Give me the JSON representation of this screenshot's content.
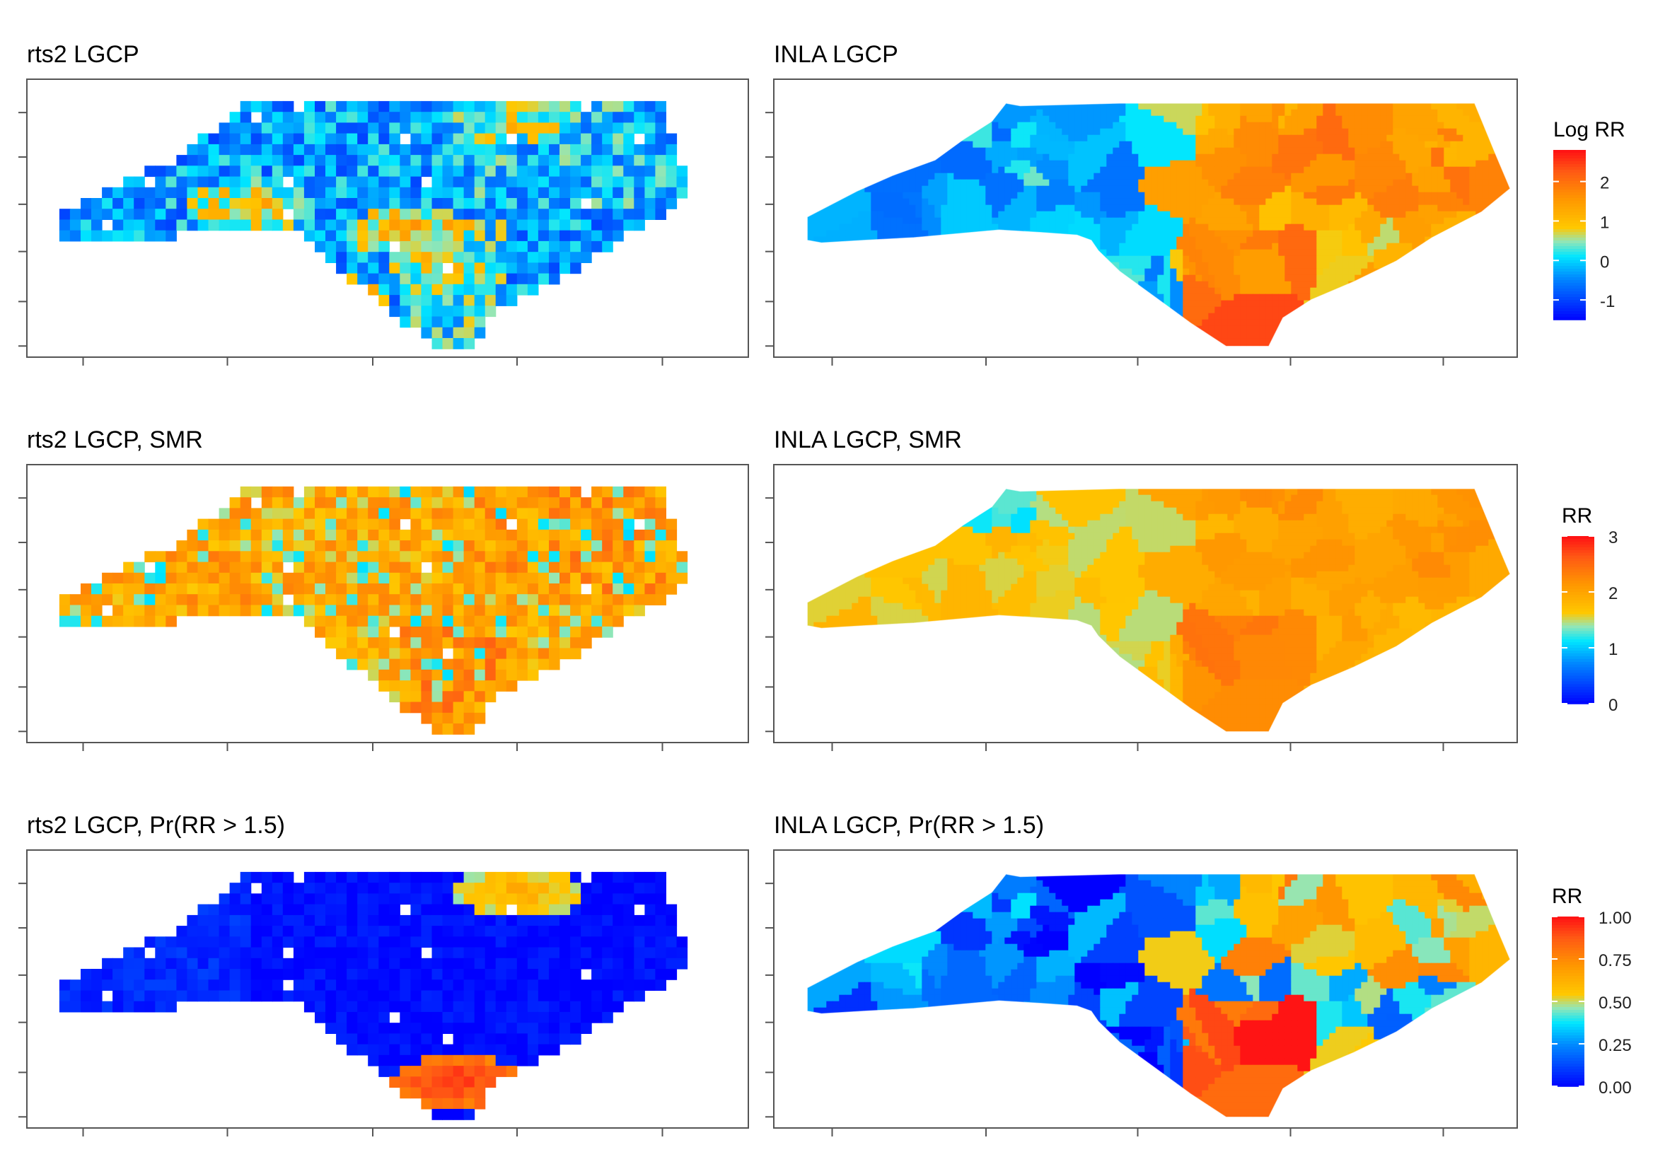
{
  "chart_data": [
    {
      "type": "heatmap",
      "title": "rts2 LGCP",
      "kind": "grid",
      "scale": "logrr",
      "style": "mixed_low",
      "hot": [
        [
          0.72,
          0.12,
          0.4
        ],
        [
          0.3,
          0.45,
          0.45
        ],
        [
          0.55,
          0.55,
          0.5
        ],
        [
          0.62,
          0.68,
          0.4
        ],
        [
          0.42,
          0.82,
          0.5
        ]
      ]
    },
    {
      "type": "heatmap",
      "title": "INLA LGCP",
      "kind": "county",
      "scale": "logrr",
      "style": "inla_logrr"
    },
    {
      "type": "heatmap",
      "title": "rts2 LGCP, SMR",
      "kind": "grid",
      "scale": "rr",
      "style": "mixed_high"
    },
    {
      "type": "heatmap",
      "title": "INLA LGCP, SMR",
      "kind": "county",
      "scale": "rr",
      "style": "inla_rr"
    },
    {
      "type": "heatmap",
      "title": "rts2 LGCP, Pr(RR > 1.5)",
      "kind": "grid",
      "scale": "prob",
      "style": "prob_grid",
      "hot": [
        [
          0.62,
          0.85,
          0.8
        ],
        [
          0.72,
          0.12,
          0.5
        ]
      ]
    },
    {
      "type": "heatmap",
      "title": "INLA LGCP, Pr(RR > 1.5)",
      "kind": "county",
      "scale": "prob",
      "style": "inla_prob"
    }
  ],
  "legends": {
    "logrr": {
      "title": "Log RR",
      "range": [
        -1.5,
        2.8
      ],
      "ticks": [
        {
          "label": "2",
          "value": 2
        },
        {
          "label": "1",
          "value": 1
        },
        {
          "label": "0",
          "value": 0
        },
        {
          "label": "-1",
          "value": -1
        }
      ]
    },
    "rr": {
      "title": "RR",
      "range": [
        0,
        3
      ],
      "ticks": [
        {
          "label": "3",
          "value": 3
        },
        {
          "label": "2",
          "value": 2
        },
        {
          "label": "1",
          "value": 1
        },
        {
          "label": "0",
          "value": 0
        }
      ]
    },
    "prob": {
      "title": "RR",
      "range": [
        0,
        1
      ],
      "ticks": [
        {
          "label": "1.00",
          "value": 1
        },
        {
          "label": "0.75",
          "value": 0.75
        },
        {
          "label": "0.50",
          "value": 0.5
        },
        {
          "label": "0.25",
          "value": 0.25
        },
        {
          "label": "0.00",
          "value": 0
        }
      ]
    }
  }
}
